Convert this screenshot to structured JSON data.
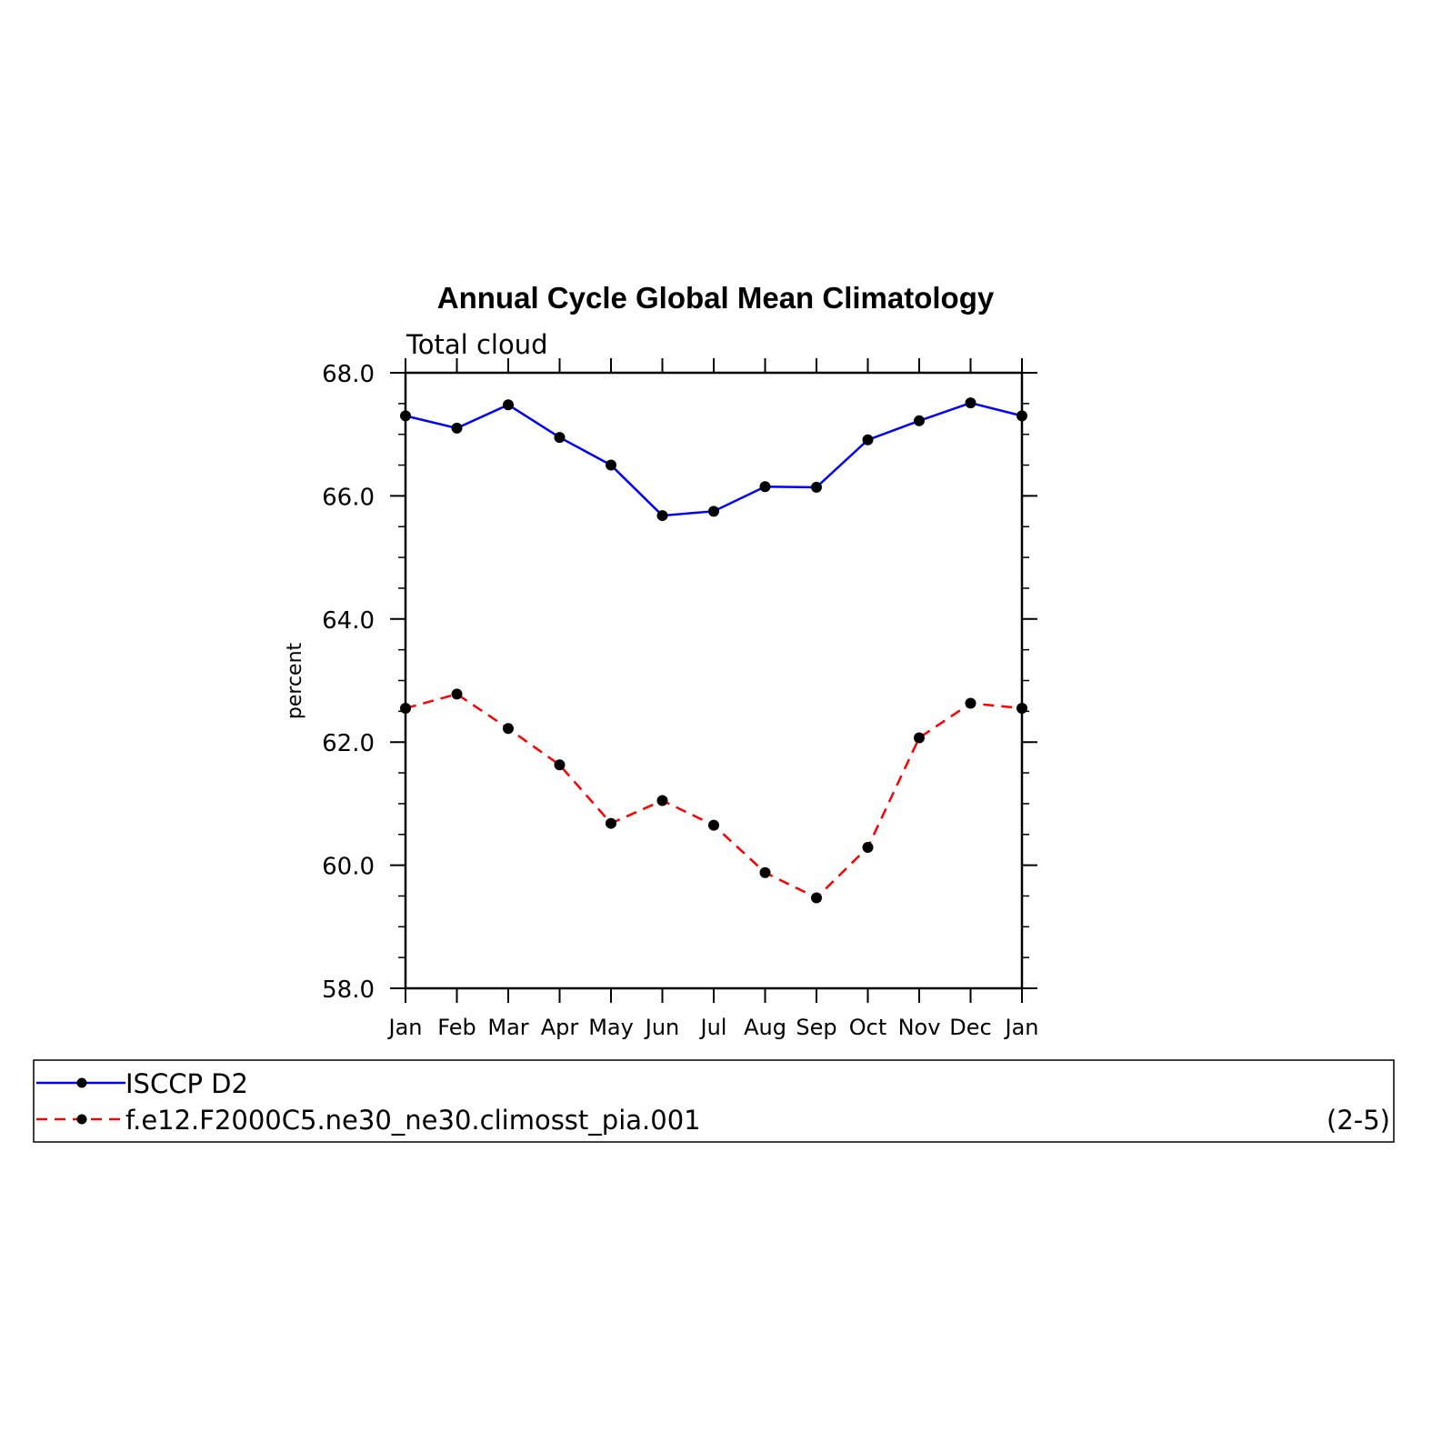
{
  "chart_data": {
    "type": "line",
    "title": "Annual Cycle Global Mean Climatology",
    "subtitle": "Total cloud",
    "xlabel": "",
    "ylabel": "percent",
    "categories": [
      "Jan",
      "Feb",
      "Mar",
      "Apr",
      "May",
      "Jun",
      "Jul",
      "Aug",
      "Sep",
      "Oct",
      "Nov",
      "Dec",
      "Jan"
    ],
    "ylim": [
      58.0,
      68.0
    ],
    "yticks": [
      "58.0",
      "60.0",
      "62.0",
      "64.0",
      "66.0",
      "68.0"
    ],
    "grid": false,
    "series": [
      {
        "name": "ISCCP D2",
        "color": "#0000ff",
        "dash": "solid",
        "values": [
          67.3,
          67.1,
          67.48,
          66.95,
          66.5,
          65.68,
          65.75,
          66.15,
          66.14,
          66.91,
          67.22,
          67.51,
          67.3
        ]
      },
      {
        "name": "f.e12.F2000C5.ne30_ne30.climosst_pia.001",
        "color": "#ff0000",
        "dash": "dashed",
        "values": [
          62.55,
          62.78,
          62.22,
          61.63,
          60.68,
          61.05,
          60.65,
          59.88,
          59.47,
          60.29,
          62.07,
          62.63,
          62.55
        ]
      }
    ],
    "legend": {
      "position": "bottom",
      "entries": [
        "ISCCP D2",
        "f.e12.F2000C5.ne30_ne30.climosst_pia.001"
      ],
      "note": "(2-5)"
    }
  }
}
